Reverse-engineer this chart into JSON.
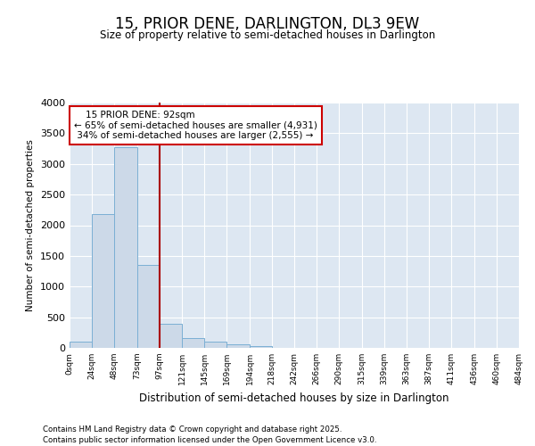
{
  "title": "15, PRIOR DENE, DARLINGTON, DL3 9EW",
  "subtitle": "Size of property relative to semi-detached houses in Darlington",
  "xlabel": "Distribution of semi-detached houses by size in Darlington",
  "ylabel": "Number of semi-detached properties",
  "property_label": "15 PRIOR DENE: 92sqm",
  "pct_smaller": 65,
  "pct_larger": 34,
  "n_smaller": 4931,
  "n_larger": 2555,
  "bar_values": [
    100,
    2175,
    3275,
    1350,
    390,
    165,
    95,
    55,
    30,
    0,
    0,
    0,
    0,
    0,
    0,
    0,
    0,
    0,
    0,
    0
  ],
  "bin_edges": [
    0,
    24,
    48,
    73,
    97,
    121,
    145,
    169,
    194,
    218,
    242,
    266,
    290,
    315,
    339,
    363,
    387,
    411,
    436,
    460,
    484
  ],
  "bin_labels": [
    "0sqm",
    "24sqm",
    "48sqm",
    "73sqm",
    "97sqm",
    "121sqm",
    "145sqm",
    "169sqm",
    "194sqm",
    "218sqm",
    "242sqm",
    "266sqm",
    "290sqm",
    "315sqm",
    "339sqm",
    "363sqm",
    "387sqm",
    "411sqm",
    "436sqm",
    "460sqm",
    "484sqm"
  ],
  "bar_color": "#ccd9e8",
  "bar_edge_color": "#7bafd4",
  "vline_color": "#aa0000",
  "vline_x": 97,
  "annotation_box_color": "#cc0000",
  "ylim": [
    0,
    4000
  ],
  "yticks": [
    0,
    500,
    1000,
    1500,
    2000,
    2500,
    3000,
    3500,
    4000
  ],
  "background_color": "#dde7f2",
  "grid_color": "#ffffff",
  "footer1": "Contains HM Land Registry data © Crown copyright and database right 2025.",
  "footer2": "Contains public sector information licensed under the Open Government Licence v3.0."
}
